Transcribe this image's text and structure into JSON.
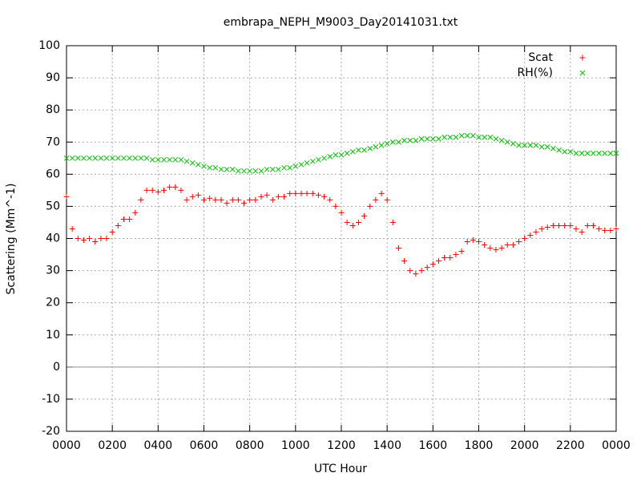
{
  "chart_data": {
    "type": "scatter",
    "title": "embrapa_NEPH_M9003_Day20141031.txt",
    "xlabel": "UTC Hour",
    "ylabel": "Scattering (Mm^-1)",
    "x": [
      0,
      0.25,
      0.5,
      0.75,
      1,
      1.25,
      1.5,
      1.75,
      2,
      2.25,
      2.5,
      2.75,
      3,
      3.25,
      3.5,
      3.75,
      4,
      4.25,
      4.5,
      4.75,
      5,
      5.25,
      5.5,
      5.75,
      6,
      6.25,
      6.5,
      6.75,
      7,
      7.25,
      7.5,
      7.75,
      8,
      8.25,
      8.5,
      8.75,
      9,
      9.25,
      9.5,
      9.75,
      10,
      10.25,
      10.5,
      10.75,
      11,
      11.25,
      11.5,
      11.75,
      12,
      12.25,
      12.5,
      12.75,
      13,
      13.25,
      13.5,
      13.75,
      14,
      14.25,
      14.5,
      14.75,
      15,
      15.25,
      15.5,
      15.75,
      16,
      16.25,
      16.5,
      16.75,
      17,
      17.25,
      17.5,
      17.75,
      18,
      18.25,
      18.5,
      18.75,
      19,
      19.25,
      19.5,
      19.75,
      20,
      20.25,
      20.5,
      20.75,
      21,
      21.25,
      21.5,
      21.75,
      22,
      22.25,
      22.5,
      22.75,
      23,
      23.25,
      23.5,
      23.75,
      24
    ],
    "series": [
      {
        "name": "Scat",
        "color": "#ff0000",
        "marker": "plus",
        "values": [
          53,
          43,
          40,
          39.5,
          40,
          39,
          40,
          40,
          42,
          44,
          46,
          46,
          48,
          52,
          55,
          55,
          54.5,
          55,
          56,
          56,
          55,
          52,
          53,
          53.5,
          52,
          52.5,
          52,
          52,
          51,
          52,
          52,
          51,
          52,
          52,
          53,
          53.5,
          52,
          53,
          53,
          54,
          54,
          54,
          54,
          54,
          53.5,
          53,
          52,
          50,
          48,
          45,
          44,
          45,
          47,
          50,
          52,
          54,
          52,
          45,
          37,
          33,
          30,
          29,
          30,
          31,
          32,
          33,
          34,
          34,
          35,
          36,
          39,
          39.5,
          39,
          38,
          37,
          36.5,
          37,
          38,
          38,
          39,
          40,
          41,
          42,
          43,
          43.5,
          44,
          44,
          44,
          44,
          43,
          42,
          44,
          44,
          43,
          42.5,
          42.5,
          43
        ]
      },
      {
        "name": "RH(%)",
        "color": "#00c000",
        "marker": "cross",
        "values": [
          65,
          65,
          65,
          65,
          65,
          65,
          65,
          65,
          65,
          65,
          65,
          65,
          65,
          65,
          65,
          64.5,
          64.5,
          64.5,
          64.5,
          64.5,
          64.5,
          64,
          63.5,
          63,
          62.5,
          62,
          62,
          61.5,
          61.5,
          61.5,
          61,
          61,
          61,
          61,
          61,
          61.5,
          61.5,
          61.5,
          62,
          62,
          62.5,
          63,
          63.5,
          64,
          64.5,
          65,
          65.5,
          66,
          66,
          66.5,
          67,
          67.5,
          67.5,
          68,
          68.5,
          69,
          69.5,
          70,
          70,
          70.5,
          70.5,
          70.5,
          71,
          71,
          71,
          71,
          71.5,
          71.5,
          71.5,
          72,
          72,
          72,
          71.5,
          71.5,
          71.5,
          71,
          70.5,
          70,
          69.5,
          69,
          69,
          69,
          69,
          68.5,
          68.5,
          68,
          67.5,
          67,
          67,
          66.5,
          66.5,
          66.5,
          66.5,
          66.5,
          66.5,
          66.5,
          66.5
        ]
      }
    ],
    "xlim": [
      0,
      24
    ],
    "xticks": [
      {
        "value": 0,
        "label": "0000"
      },
      {
        "value": 2,
        "label": "0200"
      },
      {
        "value": 4,
        "label": "0400"
      },
      {
        "value": 6,
        "label": "0600"
      },
      {
        "value": 8,
        "label": "0800"
      },
      {
        "value": 10,
        "label": "1000"
      },
      {
        "value": 12,
        "label": "1200"
      },
      {
        "value": 14,
        "label": "1400"
      },
      {
        "value": 16,
        "label": "1600"
      },
      {
        "value": 18,
        "label": "1800"
      },
      {
        "value": 20,
        "label": "2000"
      },
      {
        "value": 22,
        "label": "2200"
      },
      {
        "value": 24,
        "label": "0000"
      }
    ],
    "ylim": [
      -20,
      100
    ],
    "yticks": [
      -20,
      -10,
      0,
      10,
      20,
      30,
      40,
      50,
      60,
      70,
      80,
      90,
      100
    ],
    "grid": true,
    "zeroaxis": true,
    "legend": "top-right"
  }
}
